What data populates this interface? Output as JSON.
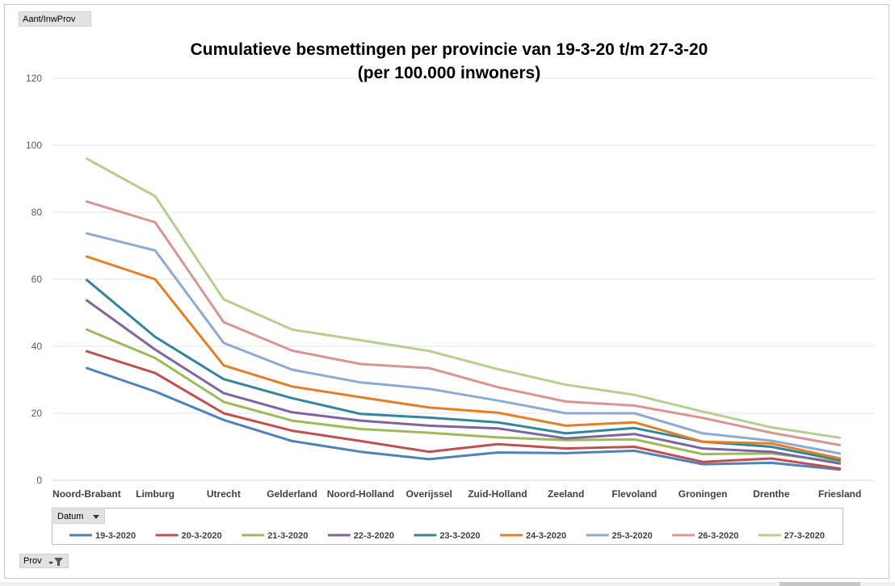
{
  "pivot": {
    "values_field": "Aant/InwProv",
    "series_field": "Datum",
    "axis_field": "Prov"
  },
  "icons": {
    "series_dropdown": "chevron-down-icon",
    "axis_filter": "filter-icon"
  },
  "chart_data": {
    "type": "line",
    "title": [
      "Cumulatieve besmettingen per provincie van 19-3-20 t/m 27-3-20",
      "(per 100.000 inwoners)"
    ],
    "xlabel": "",
    "ylabel": "",
    "ylim": [
      0,
      120
    ],
    "yticks": [
      0,
      20,
      40,
      60,
      80,
      100,
      120
    ],
    "grid": true,
    "legend_position": "bottom",
    "categories": [
      "Noord-Brabant",
      "Limburg",
      "Utrecht",
      "Gelderland",
      "Noord-Holland",
      "Overijssel",
      "Zuid-Holland",
      "Zeeland",
      "Flevoland",
      "Groningen",
      "Drenthe",
      "Friesland"
    ],
    "series": [
      {
        "name": "19-3-2020",
        "color": "#4f81bd",
        "values": [
          33.5,
          26.5,
          18.0,
          11.7,
          8.5,
          6.3,
          8.3,
          8.1,
          8.8,
          4.8,
          5.2,
          3.2
        ]
      },
      {
        "name": "20-3-2020",
        "color": "#c0504d",
        "values": [
          38.5,
          32.0,
          20.0,
          14.8,
          11.7,
          8.5,
          10.8,
          9.5,
          10.0,
          5.5,
          6.5,
          3.5
        ]
      },
      {
        "name": "21-3-2020",
        "color": "#9bbb59",
        "values": [
          45.0,
          36.5,
          23.4,
          17.8,
          15.3,
          14.2,
          12.8,
          12.0,
          12.2,
          7.8,
          8.0,
          5.5
        ]
      },
      {
        "name": "22-3-2020",
        "color": "#8064a2",
        "values": [
          53.7,
          39.0,
          26.0,
          20.3,
          17.8,
          16.3,
          15.5,
          12.5,
          13.8,
          9.5,
          8.5,
          5.0
        ]
      },
      {
        "name": "23-3-2020",
        "color": "#31859c",
        "values": [
          59.8,
          42.8,
          30.2,
          24.5,
          19.8,
          18.7,
          17.3,
          14.0,
          15.6,
          11.5,
          10.0,
          6.0
        ]
      },
      {
        "name": "24-3-2020",
        "color": "#e67e22",
        "values": [
          66.8,
          60.0,
          34.3,
          28.0,
          24.8,
          21.7,
          20.2,
          16.3,
          17.3,
          11.5,
          11.0,
          6.5
        ]
      },
      {
        "name": "25-3-2020",
        "color": "#8da9d5",
        "values": [
          73.7,
          68.6,
          41.0,
          33.0,
          29.2,
          27.3,
          23.8,
          20.0,
          20.0,
          14.0,
          11.8,
          8.0
        ]
      },
      {
        "name": "26-3-2020",
        "color": "#d99594",
        "values": [
          83.2,
          77.0,
          47.2,
          38.7,
          34.7,
          33.5,
          27.8,
          23.5,
          22.3,
          18.6,
          14.2,
          10.5
        ]
      },
      {
        "name": "27-3-2020",
        "color": "#b4cf8e",
        "values": [
          96.0,
          84.8,
          54.0,
          45.0,
          41.8,
          38.6,
          33.2,
          28.5,
          25.5,
          20.5,
          15.8,
          12.7
        ]
      }
    ]
  }
}
